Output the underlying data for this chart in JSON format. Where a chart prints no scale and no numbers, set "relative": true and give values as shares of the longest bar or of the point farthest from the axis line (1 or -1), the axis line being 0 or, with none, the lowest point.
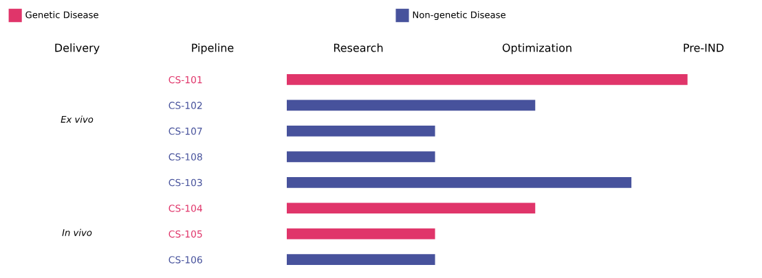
{
  "chart_data": {
    "type": "bar",
    "orientation": "horizontal",
    "relative": true,
    "legend": "top",
    "categories": [
      "CS-101",
      "CS-102",
      "CS-107",
      "CS-108",
      "CS-103",
      "CS-104",
      "CS-105",
      "CS-106"
    ],
    "series": [
      {
        "name": "Genetic Disease",
        "color": "#e0356a",
        "values": [
          1,
          null,
          null,
          null,
          null,
          0.62,
          0.37,
          null
        ]
      },
      {
        "name": "Non-genetic Disease",
        "color": "#47529c",
        "values": [
          null,
          0.62,
          0.37,
          0.37,
          0.86,
          null,
          null,
          0.37
        ]
      }
    ],
    "annotations": [
      "Delivery",
      "Pipeline",
      "Research",
      "Optimization",
      "Pre-IND",
      "Ex vivo",
      "In vivo"
    ]
  }
}
